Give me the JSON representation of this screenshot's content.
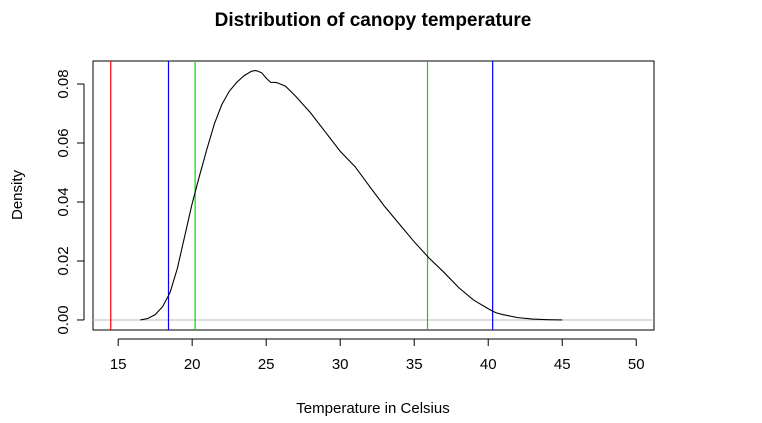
{
  "chart_data": {
    "type": "line",
    "title": "Distribution of canopy temperature",
    "xlabel": "Temperature in Celsius",
    "ylabel": "Density",
    "xlim": [
      13.3,
      51.2
    ],
    "ylim": [
      -0.0034,
      0.0878
    ],
    "x_ticks": [
      15,
      20,
      25,
      30,
      35,
      40,
      45,
      50
    ],
    "x_tick_labels": [
      "15",
      "20",
      "25",
      "30",
      "35",
      "40",
      "45",
      "50"
    ],
    "y_ticks": [
      0.0,
      0.02,
      0.04,
      0.06,
      0.08
    ],
    "y_tick_labels": [
      "0.00",
      "0.02",
      "0.04",
      "0.06",
      "0.08"
    ],
    "grid": false,
    "legend": "none",
    "baseline": {
      "y": 0,
      "color": "#bdbdbd"
    },
    "series": [
      {
        "x": [
          16.5,
          17.0,
          17.5,
          18.0,
          18.5,
          19.0,
          19.5,
          20.0,
          20.5,
          21.0,
          21.5,
          22.0,
          22.5,
          23.0,
          23.5,
          24.0,
          24.3,
          24.7,
          25.0,
          25.3,
          25.7,
          26.3,
          27.0,
          28.0,
          29.0,
          30.0,
          31.0,
          32.0,
          33.0,
          34.0,
          35.0,
          36.0,
          37.0,
          38.0,
          39.0,
          40.0,
          40.5,
          41.0,
          42.0,
          43.0,
          44.0,
          45.0
        ],
        "y": [
          0.0,
          0.0005,
          0.0018,
          0.0045,
          0.0092,
          0.0175,
          0.0285,
          0.0395,
          0.049,
          0.058,
          0.0665,
          0.073,
          0.0775,
          0.0805,
          0.0828,
          0.0843,
          0.0846,
          0.0838,
          0.082,
          0.0806,
          0.0805,
          0.0793,
          0.0758,
          0.0702,
          0.0637,
          0.0572,
          0.052,
          0.0452,
          0.0385,
          0.0325,
          0.0265,
          0.021,
          0.0162,
          0.011,
          0.0068,
          0.0038,
          0.0025,
          0.0018,
          0.0008,
          0.0003,
          0.0001,
          0.0
        ]
      }
    ],
    "vlines": [
      {
        "x": 14.5,
        "color": "#ff0000"
      },
      {
        "x": 18.4,
        "color": "#0000ff"
      },
      {
        "x": 20.2,
        "color": "#00dd00"
      },
      {
        "x": 35.9,
        "color": "#00dd00"
      },
      {
        "x": 40.3,
        "color": "#0000ff"
      }
    ]
  }
}
